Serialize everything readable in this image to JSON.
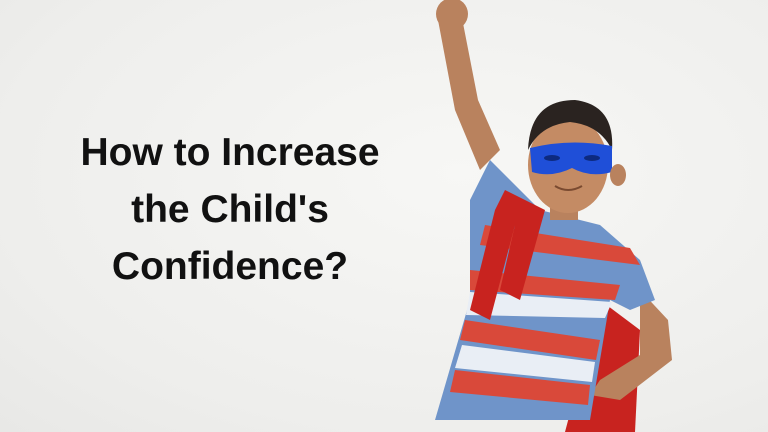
{
  "headline": {
    "lines": [
      "How to Increase",
      "the Child's",
      "Confidence?"
    ]
  },
  "colors": {
    "background": "#f1f1ef",
    "text": "#111111",
    "mask": "#1f4fd8",
    "cape": "#c8231f",
    "shirt_blue": "#6f94c9",
    "shirt_red": "#d9493a"
  }
}
